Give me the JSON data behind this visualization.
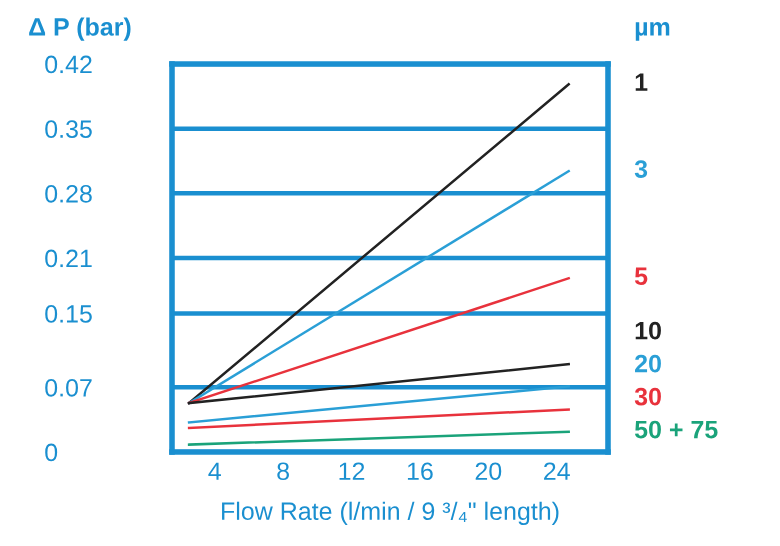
{
  "chart_data": {
    "type": "line",
    "xlabel": "Flow Rate (l/min / 9 ³/₄\" length)",
    "ylabel": "Δ P (bar)",
    "legend_title": "µm",
    "x": [
      2.5,
      24.7
    ],
    "series": [
      {
        "name": "1",
        "color": "#222222",
        "values": [
          0.053,
          0.398
        ]
      },
      {
        "name": "3",
        "color": "#2a9fd6",
        "values": [
          0.053,
          0.304
        ]
      },
      {
        "name": "5",
        "color": "#e8323c",
        "values": [
          0.053,
          0.188
        ]
      },
      {
        "name": "10",
        "color": "#222222",
        "values": [
          0.053,
          0.095
        ]
      },
      {
        "name": "20",
        "color": "#2a9fd6",
        "values": [
          0.032,
          0.071
        ]
      },
      {
        "name": "30",
        "color": "#e8323c",
        "values": [
          0.026,
          0.046
        ]
      },
      {
        "name": "50 + 75",
        "color": "#1aa37a",
        "values": [
          0.008,
          0.022
        ]
      }
    ],
    "xlim": [
      1.5,
      27
    ],
    "xticks": [
      4,
      8,
      12,
      16,
      20,
      24
    ],
    "ylim": [
      0,
      0.42
    ],
    "yticks": [
      0,
      0.07,
      0.15,
      0.21,
      0.28,
      0.35,
      0.42
    ],
    "grid": "y",
    "marker": "none",
    "line_style": "solid"
  }
}
